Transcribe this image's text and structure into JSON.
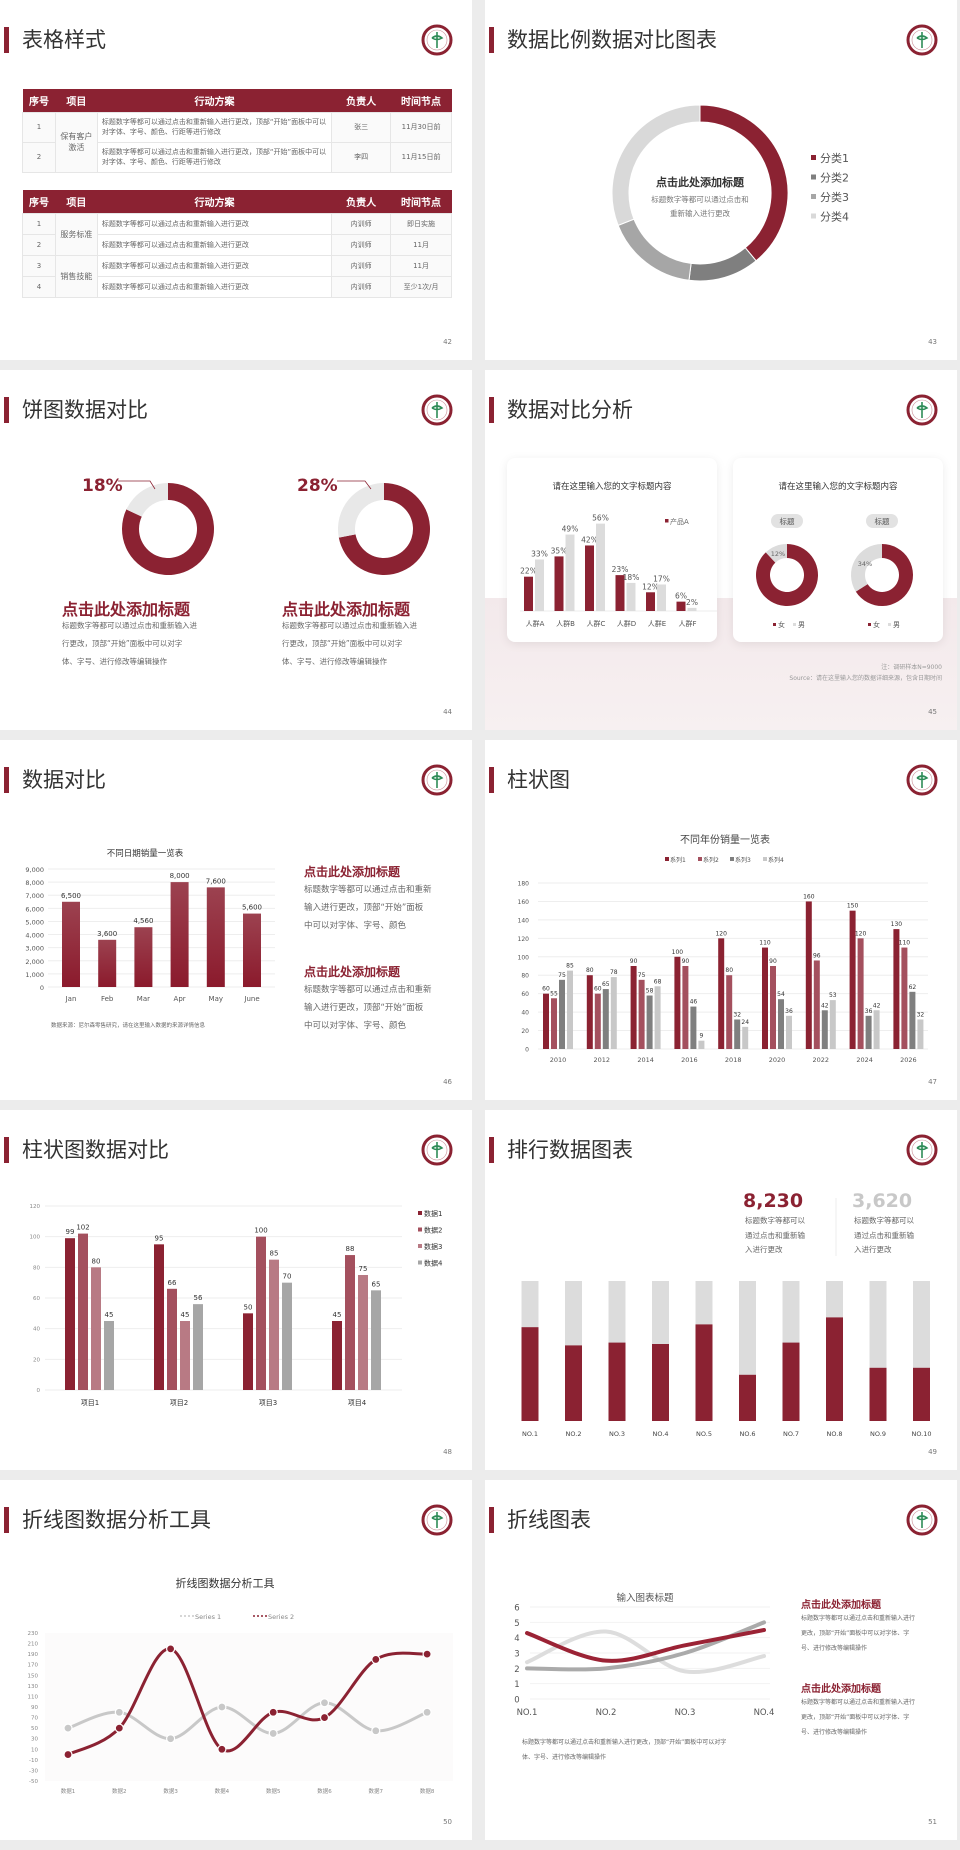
{
  "colors": {
    "accent": "#8b2232",
    "accent2": "#a4505e",
    "accent3": "#b87a84",
    "gray_dark": "#7f7f7f",
    "gray": "#a6a6a6",
    "gray_light": "#d9d9d9"
  },
  "s42": {
    "title": "表格样式",
    "page": "42",
    "tables": [
      {
        "header": [
          "序号",
          "项目",
          "行动方案",
          "负责人",
          "时间节点"
        ],
        "groups": [
          {
            "project": "保有客户激活",
            "rows": [
              {
                "no": "1",
                "plan": "标题数字等都可以通过点击和重新输入进行更改，顶部“开始”面板中可以对字体、字号、颜色、行距等进行修改",
                "owner": "张三",
                "time": "11月30日前"
              },
              {
                "no": "2",
                "plan": "标题数字等都可以通过点击和重新输入进行更改，顶部“开始”面板中可以对字体、字号、颜色、行距等进行修改",
                "owner": "李四",
                "time": "11月15日前"
              }
            ]
          }
        ]
      },
      {
        "header": [
          "序号",
          "项目",
          "行动方案",
          "负责人",
          "时间节点"
        ],
        "groups": [
          {
            "project": "服务标准",
            "rows": [
              {
                "no": "1",
                "plan": "标题数字等都可以通过点击和重新输入进行更改",
                "owner": "内训师",
                "time": "即日实施"
              },
              {
                "no": "2",
                "plan": "标题数字等都可以通过点击和重新输入进行更改",
                "owner": "内训师",
                "time": "11月"
              }
            ]
          },
          {
            "project": "销售技能",
            "rows": [
              {
                "no": "3",
                "plan": "标题数字等都可以通过点击和重新输入进行更改",
                "owner": "内训师",
                "time": "11月"
              },
              {
                "no": "4",
                "plan": "标题数字等都可以通过点击和重新输入进行更改",
                "owner": "内训师",
                "time": "至少1次/月"
              }
            ]
          }
        ]
      }
    ]
  },
  "s43": {
    "title": "数据比例数据对比图表",
    "page": "43",
    "center_title": "点击此处添加标题",
    "center_body": [
      "标题数字等都可以通过点击和",
      "重新输入进行更改"
    ],
    "chart_data": {
      "type": "pie",
      "donut": true,
      "categories": [
        "分类1",
        "分类2",
        "分类3",
        "分类4"
      ],
      "values": [
        39,
        13,
        17,
        31
      ],
      "colors": [
        "#8b2232",
        "#7f7f7f",
        "#a6a6a6",
        "#d9d9d9"
      ],
      "legend": "right"
    }
  },
  "s44": {
    "title": "饼图数据对比",
    "page": "44",
    "items": [
      {
        "pct_label": "18%",
        "heading": "点击此处添加标题",
        "body": [
          "标题数字等都可以通过点击和重新输入进",
          "行更改，顶部“开始”面板中可以对字",
          "体、字号、进行修改等编辑操作"
        ]
      },
      {
        "pct_label": "28%",
        "heading": "点击此处添加标题",
        "body": [
          "标题数字等都可以通过点击和重新输入进",
          "行更改，顶部“开始”面板中可以对字",
          "体、字号、进行修改等编辑操作"
        ]
      }
    ],
    "chart_data": [
      {
        "type": "pie",
        "donut": true,
        "values": [
          18,
          82
        ]
      },
      {
        "type": "pie",
        "donut": true,
        "values": [
          28,
          72
        ]
      }
    ]
  },
  "s45": {
    "title": "数据对比分析",
    "page": "45",
    "card1_title": "请在这里输入您的文字标题内容",
    "card2_title": "请在这里输入您的文字标题内容",
    "note": "注：调研样本N=9000",
    "source": "Source：请在这里输入您的数据详细来源，包含日期时间",
    "chart_data": [
      {
        "type": "bar",
        "categories": [
          "人群A",
          "人群B",
          "人群C",
          "人群D",
          "人群E",
          "人群F"
        ],
        "series": [
          {
            "name": "产品A",
            "values": [
              22,
              35,
              42,
              23,
              12,
              6
            ],
            "labels": [
              "22%",
              "35%",
              "42%",
              "23%",
              "12%",
              "6%"
            ]
          },
          {
            "values": [
              33,
              49,
              56,
              18,
              17,
              2
            ],
            "labels": [
              "33%",
              "49%",
              "56%",
              "18%",
              "17%",
              "2%"
            ]
          }
        ],
        "legend": "top-right"
      },
      {
        "type": "pie",
        "donut": true,
        "title": "标题",
        "categories": [
          "女",
          "男"
        ],
        "values": [
          88,
          12
        ],
        "label": "12%"
      },
      {
        "type": "pie",
        "donut": true,
        "title": "标题",
        "categories": [
          "女",
          "男"
        ],
        "values": [
          66,
          34
        ],
        "label": "34%"
      }
    ]
  },
  "s46": {
    "title": "数据对比",
    "page": "46",
    "source": "数据来源：尼尔森零售研究，请在这里输入数据的来源详情信息",
    "blocks": [
      {
        "heading": "点击此处添加标题",
        "body": [
          "标题数字等都可以通过点击和重新",
          "输入进行更改，顶部“开始”面板",
          "中可以对字体、字号、颜色"
        ]
      },
      {
        "heading": "点击此处添加标题",
        "body": [
          "标题数字等都可以通过点击和重新",
          "输入进行更改，顶部“开始”面板",
          "中可以对字体、字号、颜色"
        ]
      }
    ],
    "chart_data": {
      "type": "bar",
      "title": "不同日期销量一览表",
      "categories": [
        "Jan",
        "Feb",
        "Mar",
        "Apr",
        "May",
        "June"
      ],
      "values": [
        6500,
        3600,
        4560,
        8000,
        7600,
        5600
      ],
      "labels": [
        "6,500",
        "3,600",
        "4,560",
        "8,000",
        "7,600",
        "5,600"
      ],
      "ylim": [
        0,
        9000
      ],
      "yticks": [
        "0",
        "1,000",
        "2,000",
        "3,000",
        "4,000",
        "5,000",
        "6,000",
        "7,000",
        "8,000",
        "9,000"
      ],
      "grid": true
    }
  },
  "s47": {
    "title": "柱状图",
    "page": "47",
    "chart_data": {
      "type": "bar",
      "title": "不同年份销量一览表",
      "categories": [
        "2010",
        "2012",
        "2014",
        "2016",
        "2018",
        "2020",
        "2022",
        "2024",
        "2026"
      ],
      "series": [
        {
          "name": "系列1",
          "values": [
            60,
            80,
            90,
            100,
            120,
            110,
            160,
            150,
            130
          ]
        },
        {
          "name": "系列2",
          "values": [
            55,
            60,
            75,
            90,
            80,
            90,
            96,
            120,
            110
          ]
        },
        {
          "name": "系列3",
          "values": [
            75,
            65,
            58,
            46,
            32,
            54,
            42,
            36,
            62
          ]
        },
        {
          "name": "系列4",
          "values": [
            85,
            78,
            68,
            9,
            24,
            36,
            53,
            42,
            32
          ]
        }
      ],
      "ylim": [
        0,
        180
      ],
      "yticks": [
        "0",
        "20",
        "40",
        "60",
        "80",
        "100",
        "120",
        "140",
        "160",
        "180"
      ],
      "legend": "top",
      "grid": true
    }
  },
  "s48": {
    "title": "柱状图数据对比",
    "page": "48",
    "chart_data": {
      "type": "bar",
      "categories": [
        "项目1",
        "项目2",
        "项目3",
        "项目4"
      ],
      "series": [
        {
          "name": "数据1",
          "values": [
            99,
            95,
            50,
            45
          ]
        },
        {
          "name": "数据2",
          "values": [
            102,
            66,
            100,
            88
          ]
        },
        {
          "name": "数据3",
          "values": [
            80,
            45,
            85,
            75
          ]
        },
        {
          "name": "数据4",
          "values": [
            45,
            56,
            70,
            65
          ]
        }
      ],
      "ylim": [
        0,
        120
      ],
      "yticks": [
        "0",
        "20",
        "40",
        "60",
        "80",
        "100",
        "120"
      ],
      "legend": "right",
      "grid": true
    }
  },
  "s49": {
    "title": "排行数据图表",
    "page": "49",
    "stats": [
      {
        "value": "8,230",
        "body": [
          "标题数字等都可以",
          "通过点击和重新输",
          "入进行更改"
        ]
      },
      {
        "value": "3,620",
        "body": [
          "标题数字等都可以",
          "通过点击和重新输",
          "入进行更改"
        ]
      }
    ],
    "chart_data": {
      "type": "bar",
      "stacked": true,
      "categories": [
        "NO.1",
        "NO.2",
        "NO.3",
        "NO.4",
        "NO.5",
        "NO.6",
        "NO.7",
        "NO.8",
        "NO.9",
        "NO.10"
      ],
      "values": [
        0.67,
        0.54,
        0.56,
        0.55,
        0.69,
        0.33,
        0.56,
        0.74,
        0.38,
        0.38
      ],
      "ylim": [
        0,
        1
      ]
    }
  },
  "s50": {
    "title": "折线图数据分析工具",
    "page": "50",
    "chart_data": {
      "type": "line",
      "title": "折线图数据分析工具",
      "categories": [
        "数据1",
        "数据2",
        "数据3",
        "数据4",
        "数据5",
        "数据6",
        "数据7",
        "数据8"
      ],
      "series": [
        {
          "name": "Series 1",
          "values": [
            50,
            80,
            30,
            90,
            40,
            98,
            45,
            80
          ]
        },
        {
          "name": "Series 2",
          "values": [
            0,
            50,
            200,
            10,
            80,
            70,
            180,
            190
          ]
        }
      ],
      "ylim": [
        -50,
        230
      ],
      "yticks": [
        "-50",
        "-30",
        "-10",
        "10",
        "30",
        "50",
        "70",
        "90",
        "110",
        "130",
        "150",
        "170",
        "190",
        "210",
        "230"
      ],
      "legend": "top",
      "smooth": true
    }
  },
  "s51": {
    "title": "折线图表",
    "page": "51",
    "caption": [
      "标题数字等都可以通过点击和重新输入进行更改，顶部“开始”面板中可以对字",
      "体、字号、进行修改等编辑操作"
    ],
    "blocks": [
      {
        "heading": "点击此处添加标题",
        "body": [
          "标题数字等都可以通过点击和重新输入进行",
          "更改，顶部“开始”面板中可以对字体、字",
          "号、进行修改等编辑操作"
        ]
      },
      {
        "heading": "点击此处添加标题",
        "body": [
          "标题数字等都可以通过点击和重新输入进行",
          "更改，顶部“开始”面板中可以对字体、字",
          "号、进行修改等编辑操作"
        ]
      }
    ],
    "chart_data": {
      "type": "line",
      "title": "输入图表标题",
      "categories": [
        "NO.1",
        "NO.2",
        "NO.3",
        "NO.4"
      ],
      "series": [
        {
          "values": [
            4.3,
            2.5,
            3.5,
            4.5
          ]
        },
        {
          "values": [
            2,
            2,
            3,
            5
          ]
        },
        {
          "values": [
            2.4,
            4.4,
            1.8,
            2.8
          ]
        }
      ],
      "ylim": [
        0,
        6
      ],
      "yticks": [
        "0",
        "1",
        "2",
        "3",
        "4",
        "5",
        "6"
      ],
      "smooth": true,
      "grid": true
    }
  }
}
